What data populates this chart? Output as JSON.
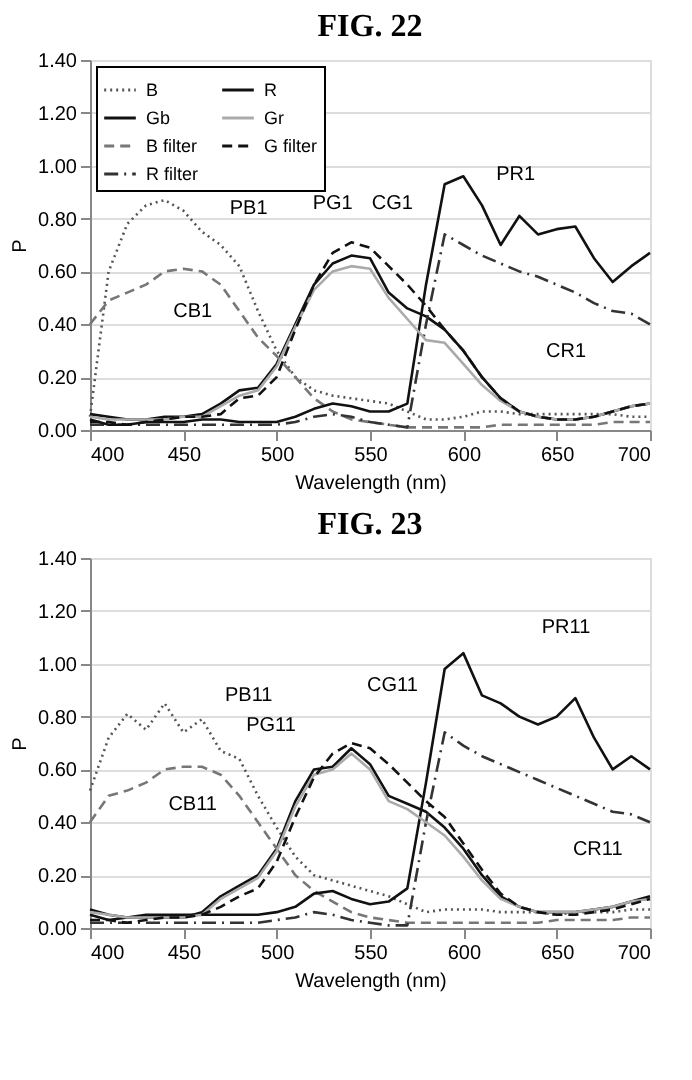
{
  "chart_data": [
    {
      "type": "line",
      "title": "FIG. 22",
      "xlabel": "Wavelength (nm)",
      "ylabel": "P",
      "grid": "y",
      "legend": "top left",
      "x": [
        400,
        410,
        420,
        430,
        440,
        450,
        460,
        470,
        480,
        490,
        500,
        510,
        520,
        530,
        540,
        550,
        560,
        570,
        580,
        590,
        600,
        610,
        620,
        630,
        640,
        650,
        660,
        670,
        680,
        690,
        700
      ],
      "series": [
        {
          "name": "B",
          "color": "#555555",
          "line_style": "dotted",
          "values": [
            0.05,
            0.6,
            0.78,
            0.85,
            0.87,
            0.83,
            0.75,
            0.7,
            0.62,
            0.45,
            0.3,
            0.2,
            0.15,
            0.13,
            0.12,
            0.11,
            0.1,
            0.07,
            0.04,
            0.04,
            0.05,
            0.07,
            0.07,
            0.06,
            0.06,
            0.06,
            0.06,
            0.06,
            0.06,
            0.05,
            0.05
          ]
        },
        {
          "name": "Gb",
          "color": "#111111",
          "line_style": "solid",
          "values": [
            0.06,
            0.05,
            0.04,
            0.04,
            0.05,
            0.05,
            0.06,
            0.1,
            0.15,
            0.16,
            0.25,
            0.4,
            0.55,
            0.63,
            0.66,
            0.65,
            0.52,
            0.46,
            0.43,
            0.38,
            0.3,
            0.2,
            0.12,
            0.07,
            0.05,
            0.04,
            0.04,
            0.05,
            0.07,
            0.09,
            0.1
          ]
        },
        {
          "name": "B filter",
          "color": "#777777",
          "line_style": "dashed",
          "values": [
            0.4,
            0.49,
            0.52,
            0.55,
            0.6,
            0.61,
            0.6,
            0.55,
            0.45,
            0.35,
            0.28,
            0.2,
            0.12,
            0.07,
            0.04,
            0.03,
            0.02,
            0.01,
            0.01,
            0.01,
            0.01,
            0.01,
            0.02,
            0.02,
            0.02,
            0.02,
            0.02,
            0.02,
            0.03,
            0.03,
            0.03
          ]
        },
        {
          "name": "R filter",
          "color": "#333333",
          "line_style": "dashdot",
          "values": [
            0.02,
            0.02,
            0.02,
            0.02,
            0.02,
            0.02,
            0.02,
            0.02,
            0.02,
            0.02,
            0.02,
            0.03,
            0.05,
            0.06,
            0.05,
            0.03,
            0.02,
            0.01,
            0.4,
            0.74,
            0.7,
            0.66,
            0.63,
            0.6,
            0.58,
            0.55,
            0.52,
            0.48,
            0.45,
            0.44,
            0.4
          ]
        },
        {
          "name": "R",
          "color": "#111111",
          "line_style": "solid",
          "values": [
            0.04,
            0.02,
            0.02,
            0.03,
            0.03,
            0.03,
            0.04,
            0.04,
            0.03,
            0.03,
            0.03,
            0.05,
            0.08,
            0.1,
            0.09,
            0.07,
            0.07,
            0.1,
            0.55,
            0.93,
            0.96,
            0.85,
            0.7,
            0.81,
            0.74,
            0.76,
            0.77,
            0.65,
            0.56,
            0.62,
            0.67
          ]
        },
        {
          "name": "Gr",
          "color": "#aaaaaa",
          "line_style": "solid",
          "values": [
            0.05,
            0.04,
            0.04,
            0.04,
            0.04,
            0.05,
            0.05,
            0.09,
            0.13,
            0.15,
            0.24,
            0.39,
            0.53,
            0.6,
            0.62,
            0.61,
            0.5,
            0.42,
            0.34,
            0.33,
            0.25,
            0.17,
            0.11,
            0.07,
            0.05,
            0.04,
            0.04,
            0.05,
            0.07,
            0.09,
            0.1
          ]
        },
        {
          "name": "G filter",
          "color": "#111111",
          "line_style": "dashed",
          "values": [
            0.03,
            0.03,
            0.02,
            0.03,
            0.04,
            0.05,
            0.05,
            0.06,
            0.12,
            0.13,
            0.2,
            0.38,
            0.55,
            0.67,
            0.71,
            0.69,
            0.62,
            0.55,
            0.47,
            0.38,
            0.3,
            0.2,
            0.12,
            0.07,
            0.05,
            0.04,
            0.04,
            0.05,
            0.07,
            0.09,
            0.1
          ]
        }
      ],
      "xlim": [
        400,
        700
      ],
      "xticks": [
        400,
        450,
        500,
        550,
        600,
        650,
        700
      ],
      "ylim": [
        0,
        1.4
      ],
      "yticks": [
        {
          "value": 0,
          "label": "0.00"
        },
        {
          "value": 0.2,
          "label": "0.20"
        },
        {
          "value": 0.4,
          "label": "0.40"
        },
        {
          "value": 0.6,
          "label": "0.60"
        },
        {
          "value": 0.8,
          "label": "0.80"
        },
        {
          "value": 1.0,
          "label": "1.00"
        },
        {
          "value": 1.2,
          "label": "1.20"
        },
        {
          "value": 1.4,
          "label": "1.40"
        }
      ],
      "annotations": [
        "PB1",
        "CB1",
        "PG1",
        "CG1",
        "PR1",
        "CR1"
      ]
    },
    {
      "type": "line",
      "title": "FIG. 23",
      "xlabel": "Wavelength (nm)",
      "ylabel": "P",
      "grid": "y",
      "legend": "top left",
      "x": [
        400,
        410,
        420,
        430,
        440,
        450,
        460,
        470,
        480,
        490,
        500,
        510,
        520,
        530,
        540,
        550,
        560,
        570,
        580,
        590,
        600,
        610,
        620,
        630,
        640,
        650,
        660,
        670,
        680,
        690,
        700
      ],
      "series": [
        {
          "name": "B",
          "color": "#555555",
          "line_style": "dotted",
          "values": [
            0.52,
            0.72,
            0.81,
            0.75,
            0.85,
            0.74,
            0.79,
            0.67,
            0.64,
            0.5,
            0.38,
            0.27,
            0.2,
            0.18,
            0.16,
            0.14,
            0.12,
            0.09,
            0.06,
            0.07,
            0.07,
            0.07,
            0.06,
            0.06,
            0.06,
            0.05,
            0.06,
            0.06,
            0.06,
            0.07,
            0.07
          ]
        },
        {
          "name": "Gb",
          "color": "#111111",
          "line_style": "solid",
          "values": [
            0.07,
            0.05,
            0.04,
            0.04,
            0.04,
            0.04,
            0.06,
            0.12,
            0.16,
            0.2,
            0.3,
            0.48,
            0.6,
            0.61,
            0.68,
            0.62,
            0.5,
            0.47,
            0.44,
            0.38,
            0.3,
            0.2,
            0.12,
            0.08,
            0.06,
            0.06,
            0.06,
            0.07,
            0.08,
            0.1,
            0.12
          ]
        },
        {
          "name": "B filter",
          "color": "#777777",
          "line_style": "dashed",
          "values": [
            0.4,
            0.5,
            0.52,
            0.55,
            0.6,
            0.61,
            0.61,
            0.58,
            0.5,
            0.4,
            0.3,
            0.2,
            0.14,
            0.1,
            0.06,
            0.04,
            0.03,
            0.02,
            0.02,
            0.02,
            0.02,
            0.02,
            0.02,
            0.02,
            0.02,
            0.03,
            0.03,
            0.03,
            0.03,
            0.04,
            0.04
          ]
        },
        {
          "name": "R filter",
          "color": "#333333",
          "line_style": "dashdot",
          "values": [
            0.02,
            0.02,
            0.02,
            0.02,
            0.02,
            0.02,
            0.02,
            0.02,
            0.02,
            0.02,
            0.03,
            0.04,
            0.06,
            0.05,
            0.03,
            0.02,
            0.01,
            0.01,
            0.4,
            0.74,
            0.69,
            0.65,
            0.62,
            0.59,
            0.56,
            0.53,
            0.5,
            0.47,
            0.44,
            0.43,
            0.4
          ]
        },
        {
          "name": "R",
          "color": "#111111",
          "line_style": "solid",
          "values": [
            0.05,
            0.03,
            0.04,
            0.05,
            0.05,
            0.05,
            0.05,
            0.05,
            0.05,
            0.05,
            0.06,
            0.08,
            0.13,
            0.14,
            0.11,
            0.09,
            0.1,
            0.15,
            0.55,
            0.98,
            1.04,
            0.88,
            0.85,
            0.8,
            0.77,
            0.8,
            0.87,
            0.72,
            0.6,
            0.65,
            0.6
          ]
        },
        {
          "name": "Gr",
          "color": "#aaaaaa",
          "line_style": "solid",
          "values": [
            0.06,
            0.05,
            0.04,
            0.04,
            0.04,
            0.04,
            0.05,
            0.11,
            0.15,
            0.19,
            0.29,
            0.46,
            0.58,
            0.6,
            0.66,
            0.6,
            0.48,
            0.45,
            0.4,
            0.35,
            0.27,
            0.18,
            0.11,
            0.08,
            0.06,
            0.06,
            0.06,
            0.07,
            0.08,
            0.1,
            0.11
          ]
        },
        {
          "name": "G filter",
          "color": "#111111",
          "line_style": "dashed",
          "values": [
            0.03,
            0.03,
            0.02,
            0.03,
            0.04,
            0.04,
            0.05,
            0.08,
            0.12,
            0.15,
            0.25,
            0.42,
            0.57,
            0.66,
            0.7,
            0.68,
            0.62,
            0.55,
            0.48,
            0.42,
            0.32,
            0.22,
            0.13,
            0.08,
            0.06,
            0.05,
            0.05,
            0.06,
            0.07,
            0.09,
            0.11
          ]
        }
      ],
      "xlim": [
        400,
        700
      ],
      "xticks": [
        400,
        450,
        500,
        550,
        600,
        650,
        700
      ],
      "ylim": [
        0,
        1.4
      ],
      "yticks": [
        {
          "value": 0,
          "label": "0.00"
        },
        {
          "value": 0.2,
          "label": "0.20"
        },
        {
          "value": 0.4,
          "label": "0.40"
        },
        {
          "value": 0.6,
          "label": "0.60"
        },
        {
          "value": 0.8,
          "label": "0.80"
        },
        {
          "value": 1.0,
          "label": "1.00"
        },
        {
          "value": 1.2,
          "label": "1.20"
        },
        {
          "value": 1.4,
          "label": "1.40"
        }
      ],
      "annotations": [
        "PB11",
        "CB11",
        "PG11",
        "CG11",
        "PR11",
        "CR11"
      ]
    }
  ]
}
